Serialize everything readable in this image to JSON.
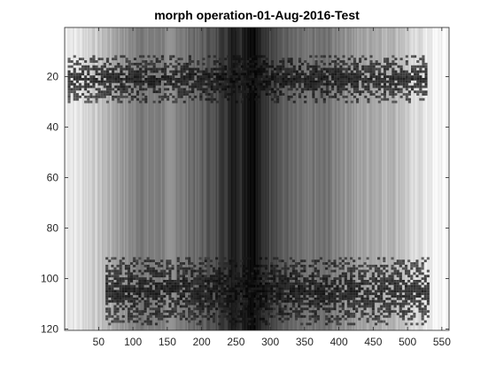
{
  "chart_data": {
    "type": "heatmap",
    "title": "morph operation-01-Aug-2016-Test",
    "colormap": "gray",
    "xlabel": "",
    "ylabel": "",
    "xlim": [
      0.5,
      560.5
    ],
    "ylim": [
      120.5,
      0.5
    ],
    "y_direction": "reverse",
    "x_ticks": [
      50,
      100,
      150,
      200,
      250,
      300,
      350,
      400,
      450,
      500,
      550
    ],
    "y_ticks": [
      20,
      40,
      60,
      80,
      100,
      120
    ],
    "grid": false,
    "column_profile": {
      "x": [
        1,
        20,
        40,
        60,
        80,
        100,
        120,
        140,
        160,
        180,
        200,
        220,
        235,
        245,
        255,
        265,
        275,
        285,
        295,
        305,
        320,
        340,
        360,
        380,
        400,
        420,
        440,
        460,
        480,
        500,
        520,
        540,
        560
      ],
      "intensity": [
        0.95,
        0.9,
        0.82,
        0.72,
        0.62,
        0.52,
        0.48,
        0.5,
        0.55,
        0.45,
        0.38,
        0.3,
        0.22,
        0.12,
        0.2,
        0.1,
        0.05,
        0.12,
        0.25,
        0.32,
        0.36,
        0.4,
        0.45,
        0.42,
        0.55,
        0.6,
        0.65,
        0.7,
        0.72,
        0.8,
        0.88,
        0.95,
        0.97
      ]
    },
    "dark_bands": [
      {
        "y_range": [
          12,
          30
        ],
        "x_range": [
          5,
          525
        ]
      },
      {
        "y_range": [
          92,
          118
        ],
        "x_range": [
          60,
          530
        ]
      }
    ]
  }
}
